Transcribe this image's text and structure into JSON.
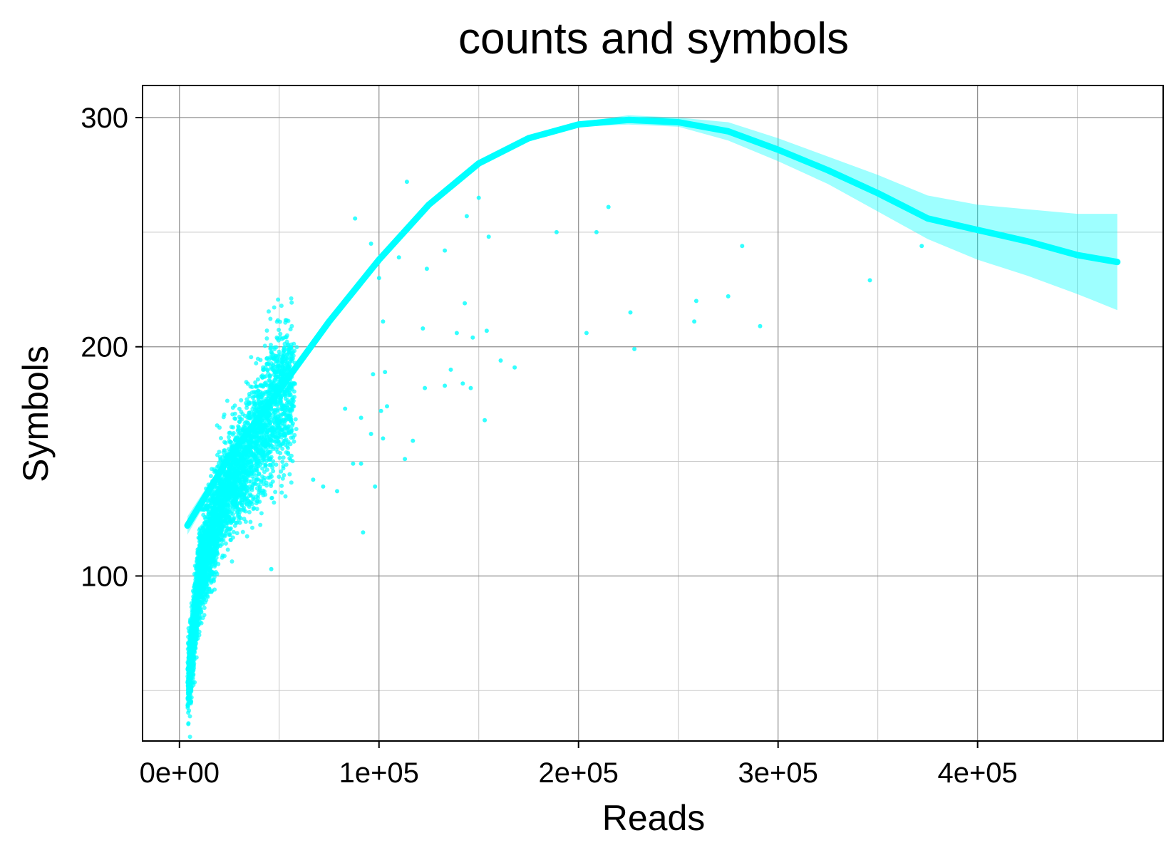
{
  "chart_data": {
    "type": "scatter",
    "title": "counts and symbols",
    "xlabel": "Reads",
    "ylabel": "Symbols",
    "xlim": [
      -18500,
      493000
    ],
    "ylim": [
      28,
      314
    ],
    "x_ticks": [
      0,
      100000,
      200000,
      300000,
      400000
    ],
    "x_tick_labels": [
      "0e+00",
      "1e+05",
      "2e+05",
      "3e+05",
      "4e+05"
    ],
    "x_minor_ticks": [
      50000,
      150000,
      250000,
      350000,
      450000
    ],
    "y_ticks": [
      100,
      200,
      300
    ],
    "y_tick_labels": [
      "100",
      "200",
      "300"
    ],
    "y_minor_ticks": [
      50,
      150,
      250
    ],
    "grid": true,
    "legend": "none",
    "colors": {
      "points": "#00ffff",
      "smooth": "#00ffff",
      "band": "#00ffff"
    },
    "cluster": {
      "description_note": "dense point cloud rising from lower-left; generated around trend",
      "count": 4200,
      "x_range": [
        4000,
        60000
      ]
    },
    "outliers": [
      [
        114000,
        272
      ],
      [
        150000,
        265
      ],
      [
        88000,
        256
      ],
      [
        144000,
        257
      ],
      [
        215000,
        261
      ],
      [
        189000,
        250
      ],
      [
        209000,
        250
      ],
      [
        155000,
        248
      ],
      [
        96000,
        245
      ],
      [
        282000,
        244
      ],
      [
        372000,
        244
      ],
      [
        133000,
        242
      ],
      [
        110000,
        239
      ],
      [
        124000,
        234
      ],
      [
        100000,
        230
      ],
      [
        346000,
        229
      ],
      [
        275000,
        222
      ],
      [
        259000,
        220
      ],
      [
        143000,
        219
      ],
      [
        226000,
        215
      ],
      [
        258000,
        211
      ],
      [
        102000,
        211
      ],
      [
        291000,
        209
      ],
      [
        122000,
        208
      ],
      [
        139000,
        206
      ],
      [
        154000,
        207
      ],
      [
        204000,
        206
      ],
      [
        147000,
        204
      ],
      [
        228000,
        199
      ],
      [
        161000,
        194
      ],
      [
        168000,
        191
      ],
      [
        136000,
        190
      ],
      [
        97000,
        188
      ],
      [
        103000,
        189
      ],
      [
        133000,
        183
      ],
      [
        123000,
        182
      ],
      [
        142000,
        184
      ],
      [
        146000,
        182
      ],
      [
        83000,
        173
      ],
      [
        91000,
        169
      ],
      [
        101000,
        172
      ],
      [
        104000,
        174
      ],
      [
        96000,
        162
      ],
      [
        102000,
        160
      ],
      [
        117000,
        159
      ],
      [
        153000,
        168
      ],
      [
        87000,
        149
      ],
      [
        91000,
        149
      ],
      [
        113000,
        151
      ],
      [
        79000,
        137
      ],
      [
        98000,
        139
      ],
      [
        92000,
        119
      ],
      [
        67000,
        142
      ],
      [
        72000,
        139
      ],
      [
        46000,
        103
      ]
    ],
    "smooth_curve": {
      "x": [
        4000,
        25000,
        50000,
        75000,
        100000,
        125000,
        150000,
        175000,
        200000,
        225000,
        250000,
        275000,
        300000,
        325000,
        350000,
        375000,
        400000,
        425000,
        450000,
        470000
      ],
      "y": [
        122,
        152,
        181,
        211,
        238,
        262,
        280,
        291,
        297,
        299,
        298,
        294,
        286,
        277,
        267,
        256,
        251,
        246,
        240,
        237
      ],
      "lower": [
        118,
        150,
        179,
        209,
        237,
        261,
        279,
        290,
        296,
        297,
        296,
        290,
        281,
        271,
        259,
        247,
        238,
        231,
        223,
        216
      ],
      "upper": [
        126,
        154,
        183,
        213,
        239,
        263,
        281,
        292,
        298,
        301,
        300,
        298,
        291,
        283,
        275,
        266,
        262,
        260,
        258,
        258
      ]
    }
  }
}
